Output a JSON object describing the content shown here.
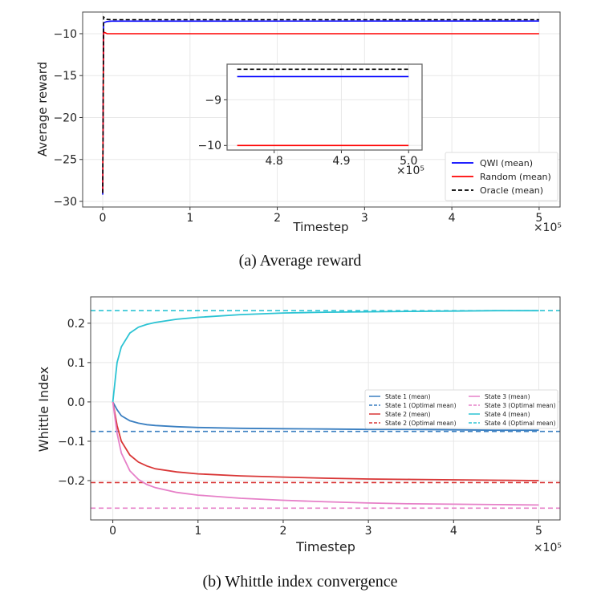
{
  "chart_data": [
    {
      "type": "line",
      "caption": "(a) Average reward",
      "xlabel": "Timestep",
      "ylabel": "Average reward",
      "x_multiplier": "×10⁵",
      "xlim": [
        -0.23,
        5.24
      ],
      "ylim": [
        -30.67,
        -7.42
      ],
      "xticks": [
        0,
        1,
        2,
        3,
        4,
        5
      ],
      "yticks": [
        -30,
        -25,
        -20,
        -15,
        -10
      ],
      "grid": true,
      "legend_position": "bottom-right",
      "series": [
        {
          "name": "QWI (mean)",
          "color": "#0000ff",
          "dash": false,
          "x": [
            0,
            0.01,
            0.05,
            0.1,
            5
          ],
          "y": [
            -29.2,
            -8.7,
            -8.55,
            -8.5,
            -8.49
          ]
        },
        {
          "name": "Random (mean)",
          "color": "#ff0000",
          "dash": false,
          "x": [
            0,
            0.01,
            0.05,
            0.1,
            5
          ],
          "y": [
            -29.0,
            -9.8,
            -10.0,
            -10.0,
            -10.0
          ]
        },
        {
          "name": "Oracle (mean)",
          "color": "#000000",
          "dash": true,
          "x": [
            0,
            0.01,
            0.05,
            0.1,
            5
          ],
          "y": [
            -29.0,
            -8.0,
            -8.3,
            -8.33,
            -8.33
          ]
        }
      ],
      "inset": {
        "xlim": [
          4.73,
          5.02
        ],
        "ylim": [
          -10.1,
          -8.22
        ],
        "xticks": [
          "4.8",
          "4.9",
          "5.0"
        ],
        "xtick_values": [
          4.8,
          4.9,
          5.0
        ],
        "yticks": [
          -10,
          -9
        ],
        "x_multiplier": "×10⁵",
        "x_range": [
          4.745,
          5.0
        ]
      }
    },
    {
      "type": "line",
      "caption": "(b) Whittle index convergence",
      "xlabel": "Timestep",
      "ylabel": "Whittle Index",
      "x_multiplier": "×10⁵",
      "xlim": [
        -0.26,
        5.25
      ],
      "ylim": [
        -0.3,
        0.267
      ],
      "xticks": [
        0,
        1,
        2,
        3,
        4,
        5
      ],
      "yticks": [
        -0.2,
        -0.1,
        0.0,
        0.1,
        0.2
      ],
      "ytick_labels": [
        "−0.2",
        "−0.1",
        "0.0",
        "0.1",
        "0.2"
      ],
      "grid": true,
      "legend_position": "center-right",
      "x": [
        0,
        0.05,
        0.1,
        0.2,
        0.3,
        0.4,
        0.5,
        0.75,
        1,
        1.5,
        2,
        2.5,
        3,
        3.5,
        4,
        4.5,
        5
      ],
      "series": [
        {
          "name": "State 1 (mean)",
          "color": "#3a7fc1",
          "y": [
            0,
            -0.02,
            -0.035,
            -0.048,
            -0.054,
            -0.058,
            -0.06,
            -0.063,
            -0.065,
            -0.067,
            -0.068,
            -0.069,
            -0.07,
            -0.07,
            -0.071,
            -0.072,
            -0.072
          ]
        },
        {
          "name": "State 2 (mean)",
          "color": "#d93636",
          "y": [
            0,
            -0.06,
            -0.1,
            -0.135,
            -0.153,
            -0.163,
            -0.17,
            -0.178,
            -0.183,
            -0.188,
            -0.191,
            -0.194,
            -0.196,
            -0.197,
            -0.198,
            -0.199,
            -0.2
          ]
        },
        {
          "name": "State 3 (mean)",
          "color": "#e680c8",
          "y": [
            0,
            -0.08,
            -0.13,
            -0.175,
            -0.197,
            -0.21,
            -0.218,
            -0.23,
            -0.237,
            -0.245,
            -0.25,
            -0.254,
            -0.257,
            -0.259,
            -0.26,
            -0.261,
            -0.262
          ]
        },
        {
          "name": "State 4 (mean)",
          "color": "#2bc3d3",
          "y": [
            0,
            0.1,
            0.14,
            0.175,
            0.19,
            0.197,
            0.202,
            0.21,
            0.215,
            0.222,
            0.226,
            0.228,
            0.229,
            0.23,
            0.231,
            0.232,
            0.232
          ]
        }
      ],
      "optimal": [
        {
          "name": "State 1 (Optimal mean)",
          "color": "#3a7fc1",
          "value": -0.075
        },
        {
          "name": "State 2 (Optimal mean)",
          "color": "#d93636",
          "value": -0.205
        },
        {
          "name": "State 3 (Optimal mean)",
          "color": "#e680c8",
          "value": -0.27
        },
        {
          "name": "State 4 (Optimal mean)",
          "color": "#2bc3d3",
          "value": 0.232
        }
      ],
      "legend_order": [
        "State 1 (mean)",
        "State 1 (Optimal mean)",
        "State 2 (mean)",
        "State 2 (Optimal mean)",
        "State 3 (mean)",
        "State 3 (Optimal mean)",
        "State 4 (mean)",
        "State 4 (Optimal mean)"
      ]
    }
  ]
}
